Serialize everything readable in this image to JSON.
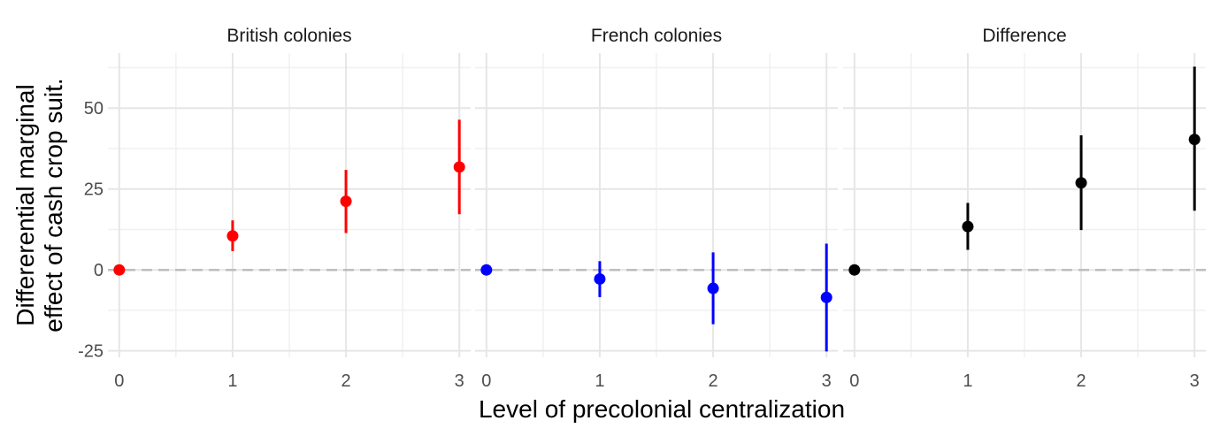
{
  "chart_data": {
    "type": "scatter",
    "chart_subtype": "point-range faceted",
    "xlabel": "Level of precolonial centralization",
    "ylabel_lines": [
      "Differerential marginal",
      "effect of cash crop suit."
    ],
    "x_ticks": [
      "0",
      "1",
      "2",
      "3"
    ],
    "y_ticks": [
      "-25",
      "0",
      "25",
      "50"
    ],
    "x_range": [
      -0.1,
      3.1
    ],
    "y_range": [
      -27,
      67
    ],
    "reference_line": {
      "y": 0,
      "style": "dashed",
      "color": "#bdbdbd"
    },
    "grid": true,
    "legend": "none",
    "facets": [
      {
        "label": "British colonies",
        "color": "#ff0000",
        "points": [
          {
            "x": 0,
            "y": 0.0,
            "lo": 0.0,
            "hi": 0.0
          },
          {
            "x": 1,
            "y": 10.5,
            "lo": 5.8,
            "hi": 15.3
          },
          {
            "x": 2,
            "y": 21.2,
            "lo": 11.4,
            "hi": 30.9
          },
          {
            "x": 3,
            "y": 31.8,
            "lo": 17.2,
            "hi": 46.4
          }
        ]
      },
      {
        "label": "French colonies",
        "color": "#0000ff",
        "points": [
          {
            "x": 0,
            "y": 0.0,
            "lo": 0.0,
            "hi": 0.0
          },
          {
            "x": 1,
            "y": -2.8,
            "lo": -8.4,
            "hi": 2.7
          },
          {
            "x": 2,
            "y": -5.7,
            "lo": -16.8,
            "hi": 5.4
          },
          {
            "x": 3,
            "y": -8.5,
            "lo": -25.2,
            "hi": 8.1
          }
        ]
      },
      {
        "label": "Difference",
        "color": "#000000",
        "points": [
          {
            "x": 0,
            "y": 0.0,
            "lo": 0.0,
            "hi": 0.0
          },
          {
            "x": 1,
            "y": 13.4,
            "lo": 6.2,
            "hi": 20.7
          },
          {
            "x": 2,
            "y": 26.9,
            "lo": 12.3,
            "hi": 41.6
          },
          {
            "x": 3,
            "y": 40.3,
            "lo": 18.3,
            "hi": 62.8
          }
        ]
      }
    ]
  }
}
